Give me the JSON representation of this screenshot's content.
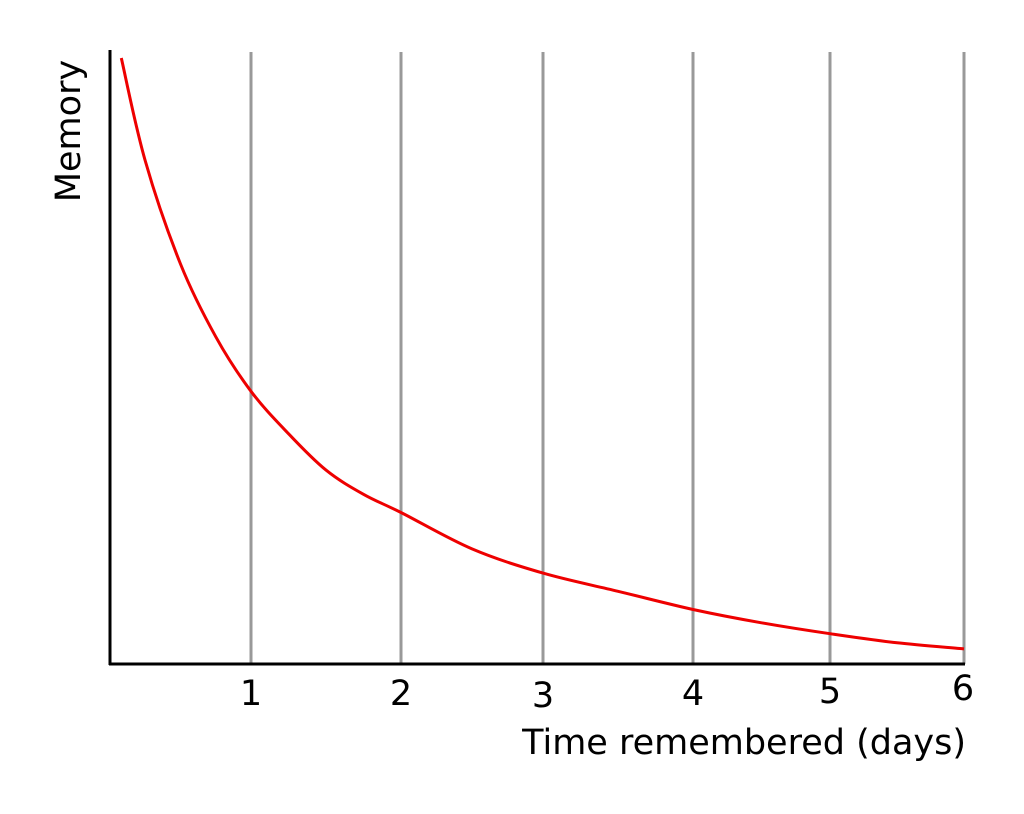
{
  "chart_data": {
    "type": "line",
    "title": "",
    "xlabel": "Time remembered (days)",
    "ylabel": "Memory",
    "xlim": [
      0,
      6
    ],
    "ylim": [
      0,
      1
    ],
    "x_ticks": [
      1,
      2,
      3,
      4,
      5,
      6
    ],
    "x_tick_labels": [
      "1",
      "2",
      "3",
      "4",
      "5",
      "6"
    ],
    "grid": "vertical",
    "legend": "none",
    "series": [
      {
        "color": "#ee0000",
        "x": [
          0.08,
          0.25,
          0.5,
          0.75,
          1,
          1.25,
          1.5,
          1.75,
          2,
          2.5,
          3,
          3.5,
          4,
          4.5,
          5,
          5.5,
          6
        ],
        "y": [
          1.0,
          0.83,
          0.66,
          0.54,
          0.45,
          0.38,
          0.32,
          0.28,
          0.25,
          0.19,
          0.15,
          0.12,
          0.09,
          0.068,
          0.05,
          0.035,
          0.025
        ]
      }
    ],
    "colors": {
      "curve": "#ee0000",
      "gridline": "#999999",
      "axis": "#000000"
    }
  }
}
